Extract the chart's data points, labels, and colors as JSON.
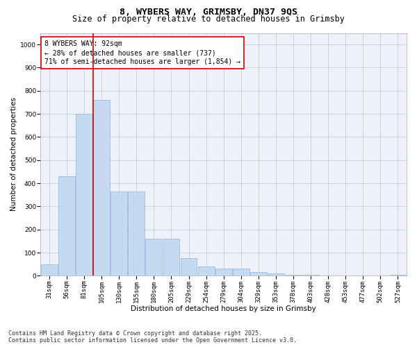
{
  "title1": "8, WYBERS WAY, GRIMSBY, DN37 9QS",
  "title2": "Size of property relative to detached houses in Grimsby",
  "xlabel": "Distribution of detached houses by size in Grimsby",
  "ylabel": "Number of detached properties",
  "categories": [
    "31sqm",
    "56sqm",
    "81sqm",
    "105sqm",
    "130sqm",
    "155sqm",
    "180sqm",
    "205sqm",
    "229sqm",
    "254sqm",
    "279sqm",
    "304sqm",
    "329sqm",
    "353sqm",
    "378sqm",
    "403sqm",
    "428sqm",
    "453sqm",
    "477sqm",
    "502sqm",
    "527sqm"
  ],
  "values": [
    50,
    430,
    700,
    760,
    365,
    365,
    160,
    160,
    75,
    40,
    30,
    30,
    15,
    10,
    5,
    5,
    0,
    0,
    0,
    0,
    5
  ],
  "bar_color": "#c5d9f1",
  "bar_edge_color": "#8db4e2",
  "grid_color": "#c0cfe0",
  "background_color": "#eef2f8",
  "vline_color": "#cc0000",
  "vline_pos": 2.5,
  "annotation_box_text": "8 WYBERS WAY: 92sqm\n← 28% of detached houses are smaller (737)\n71% of semi-detached houses are larger (1,854) →",
  "footer_line1": "Contains HM Land Registry data © Crown copyright and database right 2025.",
  "footer_line2": "Contains public sector information licensed under the Open Government Licence v3.0.",
  "ylim": [
    0,
    1050
  ],
  "yticks": [
    0,
    100,
    200,
    300,
    400,
    500,
    600,
    700,
    800,
    900,
    1000
  ],
  "title_fontsize": 9.5,
  "subtitle_fontsize": 8.5,
  "axis_label_fontsize": 7.5,
  "tick_fontsize": 6.5,
  "annotation_fontsize": 7.0,
  "footer_fontsize": 6.0
}
